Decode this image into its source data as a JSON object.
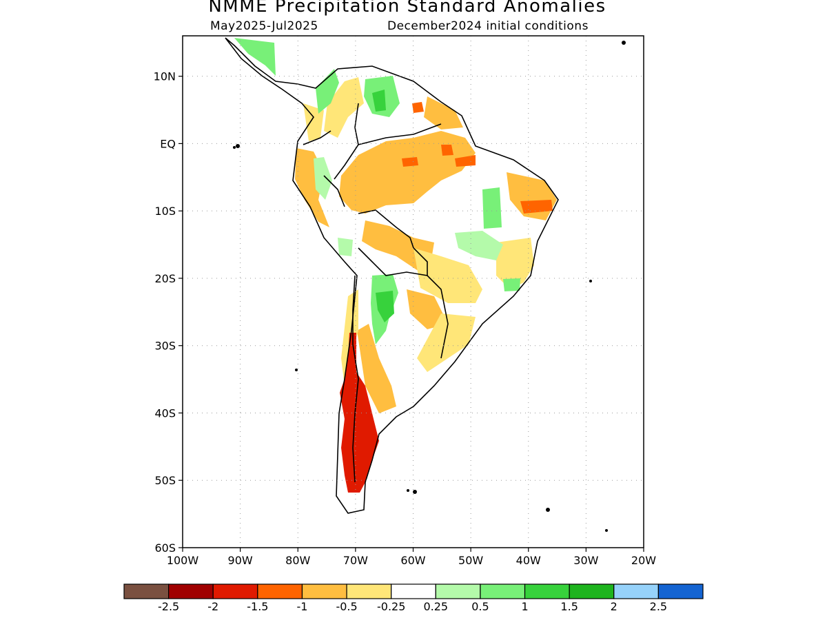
{
  "header": {
    "title": "NMME Precipitation Standard Anomalies",
    "period": "May2025-Jul2025",
    "init": "December2024 initial conditions"
  },
  "axes": {
    "lat_labels": [
      "10N",
      "EQ",
      "10S",
      "20S",
      "30S",
      "40S",
      "50S",
      "60S"
    ],
    "lat_values": [
      10,
      0,
      -10,
      -20,
      -30,
      -40,
      -50,
      -60
    ],
    "lon_labels": [
      "100W",
      "90W",
      "80W",
      "70W",
      "60W",
      "50W",
      "40W",
      "30W",
      "20W"
    ],
    "lon_values": [
      -100,
      -90,
      -80,
      -70,
      -60,
      -50,
      -40,
      -30,
      -20
    ],
    "lon_range": [
      -100,
      -20
    ],
    "lat_range": [
      -60,
      16
    ]
  },
  "colorbar": {
    "colors": [
      "#7a5040",
      "#a00000",
      "#e01a00",
      "#ff6400",
      "#ffbe40",
      "#ffe678",
      "#ffffff",
      "#b4faaa",
      "#78f078",
      "#37d23c",
      "#1eb41e",
      "#96d2fa",
      "#1464d2"
    ],
    "labels": [
      "-2.5",
      "-2",
      "-1.5",
      "-1",
      "-0.5",
      "-0.25",
      "0.25",
      "0.5",
      "1",
      "1.5",
      "2",
      "2.5"
    ]
  },
  "legend_colors": {
    "dry_mod": "#ffbe40",
    "dry_light": "#ffe678",
    "dry_strong": "#ff6400",
    "dry_severe": "#e01a00",
    "wet_light": "#b4faaa",
    "wet_mod": "#78f078",
    "wet_strong": "#37d23c"
  }
}
